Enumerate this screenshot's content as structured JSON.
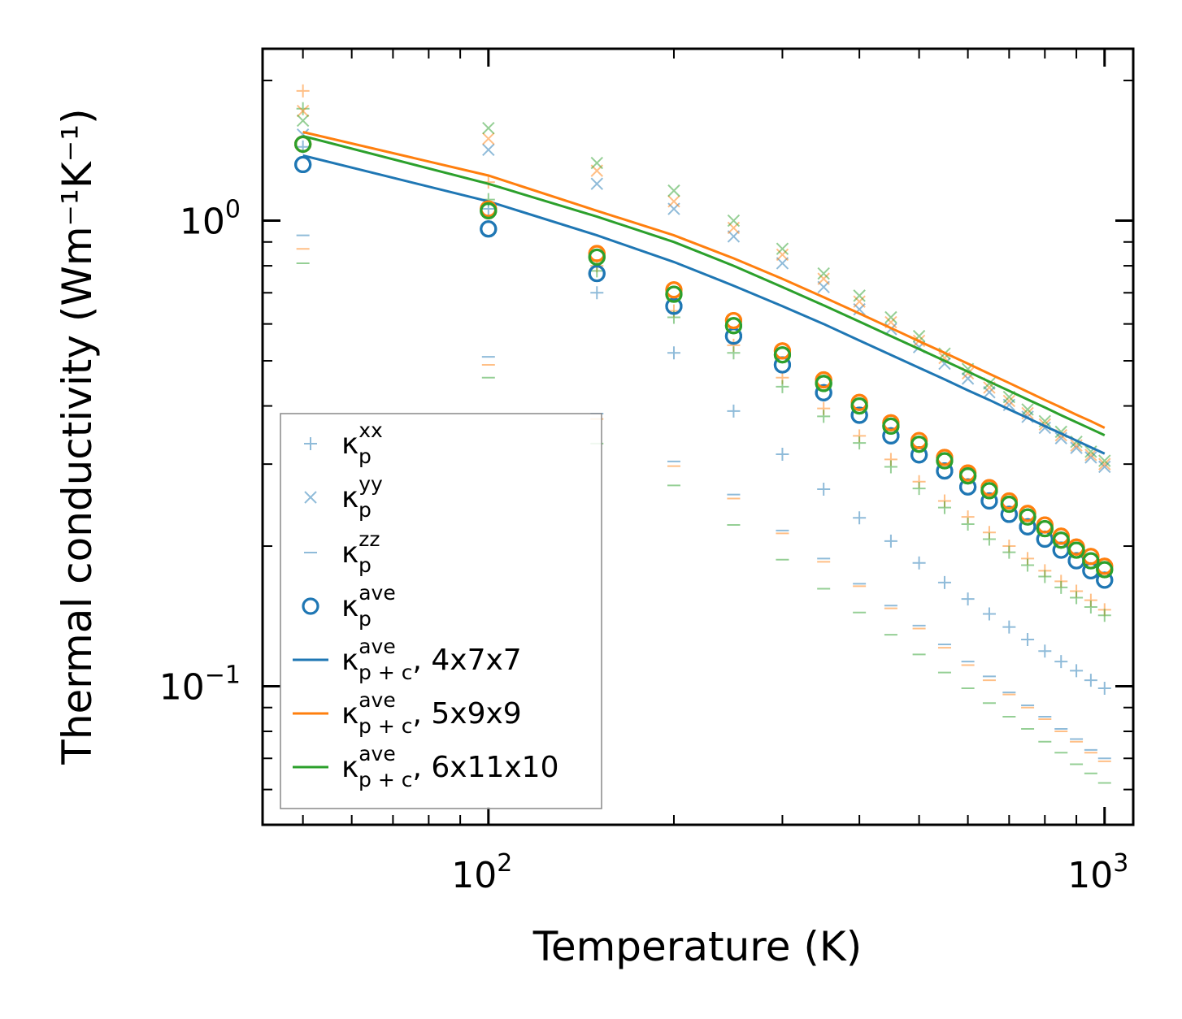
{
  "chart_data": {
    "type": "scatter",
    "xlabel": "Temperature (K)",
    "ylabel": "Thermal conductivity (Wm⁻¹K⁻¹)",
    "xscale": "log",
    "yscale": "log",
    "xlim": [
      43,
      1113
    ],
    "ylim": [
      0.0504,
      2.34
    ],
    "x_tick_labels": [
      {
        "value": 100,
        "base": "10",
        "exp": "2"
      },
      {
        "value": 1000,
        "base": "10",
        "exp": "3"
      }
    ],
    "y_tick_labels": [
      {
        "value": 1.0,
        "base": "10",
        "exp": "0"
      },
      {
        "value": 0.1,
        "base": "10",
        "exp": "−1"
      }
    ],
    "colors": {
      "c1": "#1f77b4",
      "c2": "#ff7f0e",
      "c3": "#2ca02c"
    },
    "x": [
      50,
      100,
      150,
      200,
      250,
      300,
      350,
      400,
      450,
      500,
      550,
      600,
      650,
      700,
      750,
      800,
      850,
      900,
      950,
      1000
    ],
    "scatter_series": [
      {
        "name": "kxx-4x7x7",
        "marker": "plus",
        "color": "#1f77b4",
        "values": [
          1.44,
          1.06,
          0.7,
          0.52,
          0.39,
          0.315,
          0.265,
          0.23,
          0.205,
          0.184,
          0.167,
          0.154,
          0.143,
          0.134,
          0.126,
          0.119,
          0.113,
          0.108,
          0.103,
          0.099
        ]
      },
      {
        "name": "kxx-5x9x9",
        "marker": "plus",
        "color": "#ff7f0e",
        "values": [
          1.9,
          1.21,
          0.8,
          0.64,
          0.54,
          0.46,
          0.395,
          0.345,
          0.307,
          0.275,
          0.25,
          0.231,
          0.214,
          0.2,
          0.188,
          0.177,
          0.168,
          0.16,
          0.153,
          0.146
        ]
      },
      {
        "name": "kxx-6x11x10",
        "marker": "plus",
        "color": "#2ca02c",
        "values": [
          1.74,
          1.11,
          0.78,
          0.62,
          0.52,
          0.44,
          0.38,
          0.333,
          0.296,
          0.266,
          0.242,
          0.223,
          0.207,
          0.194,
          0.182,
          0.172,
          0.163,
          0.155,
          0.148,
          0.142
        ]
      },
      {
        "name": "kyy-4x7x7",
        "marker": "x",
        "color": "#1f77b4",
        "values": [
          1.53,
          1.42,
          1.2,
          1.06,
          0.925,
          0.81,
          0.72,
          0.645,
          0.585,
          0.535,
          0.493,
          0.458,
          0.428,
          0.402,
          0.379,
          0.359,
          0.341,
          0.325,
          0.31,
          0.296
        ]
      },
      {
        "name": "kyy-5x9x9",
        "marker": "x",
        "color": "#ff7f0e",
        "values": [
          1.72,
          1.5,
          1.28,
          1.1,
          0.965,
          0.845,
          0.75,
          0.67,
          0.605,
          0.552,
          0.507,
          0.47,
          0.438,
          0.41,
          0.386,
          0.365,
          0.346,
          0.329,
          0.314,
          0.3
        ]
      },
      {
        "name": "kyy-6x11x10",
        "marker": "x",
        "color": "#2ca02c",
        "values": [
          1.64,
          1.58,
          1.33,
          1.16,
          1.0,
          0.87,
          0.77,
          0.69,
          0.62,
          0.565,
          0.518,
          0.48,
          0.447,
          0.418,
          0.393,
          0.371,
          0.352,
          0.335,
          0.319,
          0.305
        ]
      },
      {
        "name": "kzz-4x7x7",
        "marker": "hline",
        "color": "#1f77b4",
        "values": [
          0.93,
          0.51,
          0.385,
          0.304,
          0.258,
          0.216,
          0.188,
          0.166,
          0.149,
          0.135,
          0.123,
          0.113,
          0.105,
          0.097,
          0.091,
          0.086,
          0.081,
          0.077,
          0.073,
          0.07
        ]
      },
      {
        "name": "kzz-5x9x9",
        "marker": "hline",
        "color": "#ff7f0e",
        "values": [
          0.87,
          0.49,
          0.375,
          0.297,
          0.253,
          0.213,
          0.185,
          0.164,
          0.147,
          0.133,
          0.121,
          0.111,
          0.103,
          0.096,
          0.09,
          0.085,
          0.08,
          0.076,
          0.072,
          0.069
        ]
      },
      {
        "name": "kzz-6x11x10",
        "marker": "hline",
        "color": "#2ca02c",
        "values": [
          0.81,
          0.46,
          0.332,
          0.27,
          0.222,
          0.187,
          0.162,
          0.144,
          0.129,
          0.117,
          0.107,
          0.099,
          0.092,
          0.086,
          0.081,
          0.076,
          0.072,
          0.068,
          0.065,
          0.062
        ]
      },
      {
        "name": "kave-4x7x7",
        "marker": "circle",
        "color": "#1f77b4",
        "values": [
          1.32,
          0.96,
          0.77,
          0.655,
          0.565,
          0.49,
          0.427,
          0.382,
          0.345,
          0.314,
          0.29,
          0.268,
          0.25,
          0.234,
          0.22,
          0.207,
          0.196,
          0.186,
          0.177,
          0.169
        ]
      },
      {
        "name": "kave-5x9x9",
        "marker": "circle",
        "color": "#ff7f0e",
        "values": [
          1.46,
          1.06,
          0.85,
          0.71,
          0.61,
          0.525,
          0.455,
          0.407,
          0.368,
          0.337,
          0.31,
          0.287,
          0.267,
          0.25,
          0.235,
          0.222,
          0.21,
          0.199,
          0.19,
          0.181
        ]
      },
      {
        "name": "kave-6x11x10",
        "marker": "circle",
        "color": "#2ca02c",
        "values": [
          1.46,
          1.05,
          0.835,
          0.695,
          0.595,
          0.515,
          0.447,
          0.4,
          0.362,
          0.331,
          0.305,
          0.283,
          0.263,
          0.246,
          0.231,
          0.218,
          0.206,
          0.196,
          0.186,
          0.178
        ]
      }
    ],
    "lines": [
      {
        "name": "kpc-4x7x7",
        "color": "#1f77b4",
        "values": [
          1.38,
          1.1,
          0.93,
          0.815,
          0.725,
          0.655,
          0.6,
          0.553,
          0.515,
          0.483,
          0.456,
          0.432,
          0.412,
          0.393,
          0.377,
          0.362,
          0.349,
          0.337,
          0.326,
          0.316
        ]
      },
      {
        "name": "kpc-5x9x9",
        "color": "#ff7f0e",
        "values": [
          1.55,
          1.25,
          1.05,
          0.93,
          0.83,
          0.75,
          0.685,
          0.632,
          0.588,
          0.551,
          0.52,
          0.493,
          0.469,
          0.448,
          0.429,
          0.412,
          0.397,
          0.383,
          0.371,
          0.359
        ]
      },
      {
        "name": "kpc-6x11x10",
        "color": "#2ca02c",
        "values": [
          1.52,
          1.2,
          1.02,
          0.9,
          0.8,
          0.72,
          0.658,
          0.607,
          0.565,
          0.53,
          0.5,
          0.474,
          0.451,
          0.431,
          0.413,
          0.397,
          0.382,
          0.369,
          0.357,
          0.346
        ]
      }
    ],
    "legend": {
      "position": "lower left",
      "entries": [
        {
          "marker": "plus",
          "color": "#1f77b4",
          "label": "κ",
          "sub": "p",
          "sup": "xx",
          "suffix": ""
        },
        {
          "marker": "x",
          "color": "#1f77b4",
          "label": "κ",
          "sub": "p",
          "sup": "yy",
          "suffix": ""
        },
        {
          "marker": "hline",
          "color": "#1f77b4",
          "label": "κ",
          "sub": "p",
          "sup": "zz",
          "suffix": ""
        },
        {
          "marker": "circle",
          "color": "#1f77b4",
          "label": "κ",
          "sub": "p",
          "sup": "ave",
          "suffix": ""
        },
        {
          "marker": "line",
          "color": "#1f77b4",
          "label": "κ",
          "sub": "p + c",
          "sup": "ave",
          "suffix": ", 4x7x7"
        },
        {
          "marker": "line",
          "color": "#ff7f0e",
          "label": "κ",
          "sub": "p + c",
          "sup": "ave",
          "suffix": ", 5x9x9"
        },
        {
          "marker": "line",
          "color": "#2ca02c",
          "label": "κ",
          "sub": "p + c",
          "sup": "ave",
          "suffix": ", 6x11x10"
        }
      ]
    }
  }
}
